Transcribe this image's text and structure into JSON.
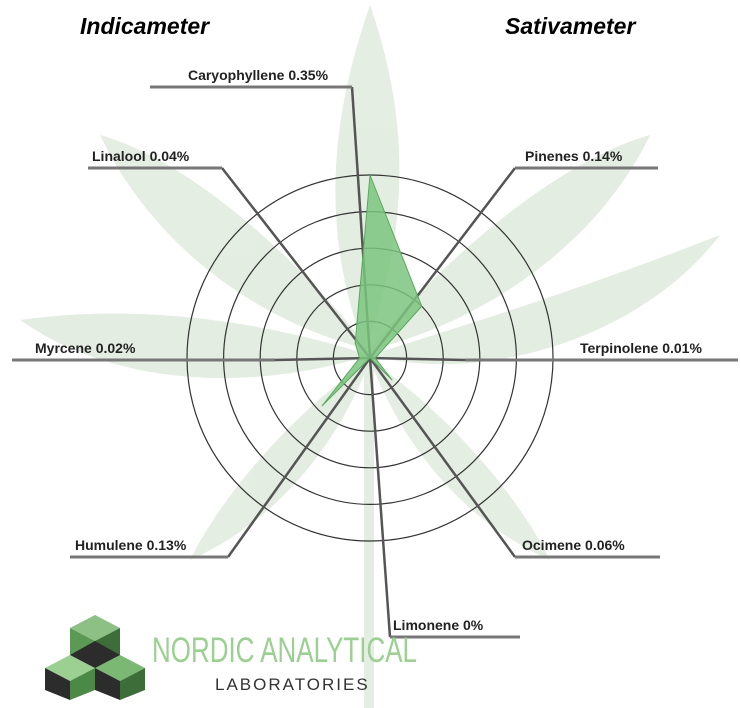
{
  "chart_data": {
    "type": "radar",
    "title_left": "Indicameter",
    "title_right": "Sativameter",
    "categories": [
      "Caryophyllene",
      "Pinenes",
      "Terpinolene",
      "Ocimene",
      "Limonene",
      "Humulene",
      "Myrcene",
      "Linalool"
    ],
    "values": [
      0.35,
      0.14,
      0.01,
      0.06,
      0,
      0.13,
      0.02,
      0.04
    ],
    "value_labels": [
      "0.35%",
      "0.14%",
      "0.01%",
      "0.06%",
      "0%",
      "0.13%",
      "0.02%",
      "0.04%"
    ],
    "rlim": [
      0,
      0.35
    ],
    "rticks": [
      0.07,
      0.14,
      0.21,
      0.28,
      0.35
    ],
    "color": "#7cc47f",
    "grid": true
  },
  "logo": {
    "name": "NORDIC ANALYTICAL",
    "subtitle": "LABORATORIES"
  }
}
